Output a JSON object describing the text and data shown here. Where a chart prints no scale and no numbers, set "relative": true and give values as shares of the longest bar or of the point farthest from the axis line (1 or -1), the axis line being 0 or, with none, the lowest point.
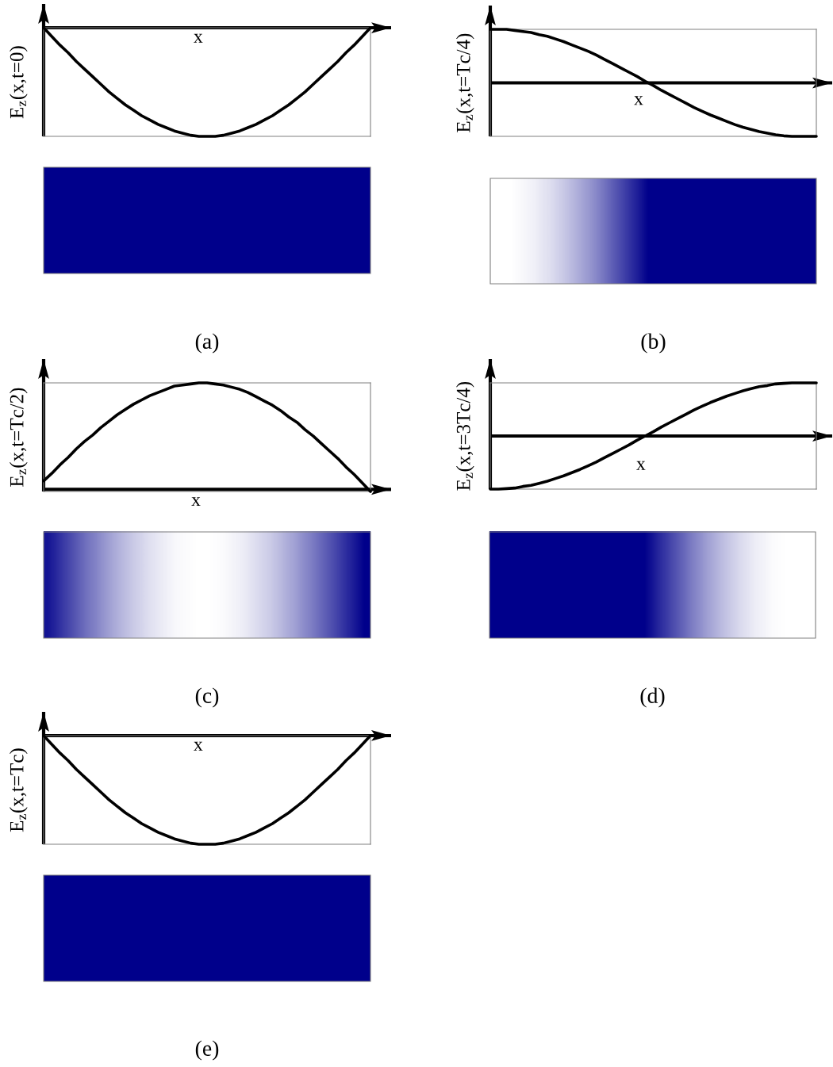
{
  "chart_data": [
    {
      "type": "line",
      "relative": true,
      "xlabel": "x",
      "ylabel": "E$_{z}$(x,t=0)",
      "annotations": [
        "(a)"
      ],
      "categories": [
        null,
        null,
        null,
        null,
        null,
        null,
        null,
        null,
        null,
        null,
        null,
        null,
        null,
        null,
        null,
        null,
        null,
        null,
        null,
        null,
        null,
        null,
        null,
        null,
        null,
        null,
        null,
        null,
        null,
        null,
        null,
        null,
        null,
        null,
        null,
        null,
        null,
        null,
        null,
        null,
        null
      ],
      "series": [
        {
          "color": "#000000",
          "values": [
            0,
            -0.08,
            -0.16,
            -0.23,
            -0.31,
            -0.38,
            -0.45,
            -0.52,
            -0.59,
            -0.65,
            -0.71,
            -0.76,
            -0.81,
            -0.85,
            -0.89,
            -0.92,
            -0.95,
            -0.97,
            -0.99,
            -1,
            -1,
            -1,
            -0.99,
            -0.97,
            -0.95,
            -0.92,
            -0.89,
            -0.85,
            -0.81,
            -0.76,
            -0.71,
            -0.65,
            -0.59,
            -0.52,
            -0.45,
            -0.38,
            -0.31,
            -0.23,
            -0.16,
            -0.08,
            0
          ]
        }
      ]
    },
    {
      "type": "line",
      "relative": true,
      "xlabel": "x",
      "ylabel": "E$_{z}$(x,t=Tc/4)",
      "annotations": [
        "(b)"
      ],
      "categories": [
        null,
        null,
        null,
        null,
        null,
        null,
        null,
        null,
        null,
        null,
        null,
        null,
        null,
        null,
        null,
        null,
        null,
        null,
        null,
        null,
        null,
        null,
        null,
        null,
        null,
        null,
        null,
        null,
        null,
        null,
        null,
        null,
        null,
        null,
        null,
        null,
        null,
        null,
        null,
        null,
        null
      ],
      "series": [
        {
          "color": "#000000",
          "values": [
            1,
            1,
            1,
            0.98,
            0.96,
            0.94,
            0.9,
            0.87,
            0.82,
            0.77,
            0.71,
            0.65,
            0.59,
            0.52,
            0.44,
            0.36,
            0.28,
            0.2,
            0.12,
            0.03,
            -0.05,
            -0.14,
            -0.22,
            -0.3,
            -0.38,
            -0.46,
            -0.53,
            -0.6,
            -0.66,
            -0.72,
            -0.78,
            -0.83,
            -0.87,
            -0.91,
            -0.94,
            -0.97,
            -0.99,
            -1,
            -1,
            -1,
            -1
          ]
        }
      ]
    },
    {
      "type": "line",
      "relative": true,
      "xlabel": "x",
      "ylabel": "E$_{z}$(x,t=Tc/2)",
      "annotations": [
        "(c)"
      ],
      "categories": [
        null,
        null,
        null,
        null,
        null,
        null,
        null,
        null,
        null,
        null,
        null,
        null,
        null,
        null,
        null,
        null,
        null,
        null,
        null,
        null,
        null,
        null,
        null,
        null,
        null,
        null,
        null,
        null,
        null,
        null,
        null,
        null,
        null,
        null,
        null,
        null,
        null,
        null,
        null,
        null,
        null
      ],
      "series": [
        {
          "color": "#000000",
          "values": [
            0.08,
            0.15,
            0.23,
            0.3,
            0.38,
            0.45,
            0.51,
            0.58,
            0.64,
            0.7,
            0.75,
            0.8,
            0.84,
            0.88,
            0.91,
            0.94,
            0.97,
            0.98,
            0.99,
            1,
            1,
            0.99,
            0.98,
            0.96,
            0.94,
            0.91,
            0.87,
            0.83,
            0.79,
            0.74,
            0.68,
            0.63,
            0.56,
            0.5,
            0.43,
            0.36,
            0.29,
            0.21,
            0.14,
            0.06,
            -0.02
          ]
        }
      ]
    },
    {
      "type": "line",
      "relative": true,
      "xlabel": "x",
      "ylabel": "E$_{z}$(x,t=3Tc/4)",
      "annotations": [
        "(d)"
      ],
      "categories": [
        null,
        null,
        null,
        null,
        null,
        null,
        null,
        null,
        null,
        null,
        null,
        null,
        null,
        null,
        null,
        null,
        null,
        null,
        null,
        null,
        null,
        null,
        null,
        null,
        null,
        null,
        null,
        null,
        null,
        null,
        null,
        null,
        null,
        null,
        null,
        null,
        null,
        null,
        null,
        null,
        null
      ],
      "series": [
        {
          "color": "#000000",
          "values": [
            -1,
            -1,
            -0.99,
            -0.98,
            -0.95,
            -0.93,
            -0.89,
            -0.85,
            -0.8,
            -0.75,
            -0.69,
            -0.63,
            -0.56,
            -0.49,
            -0.41,
            -0.33,
            -0.25,
            -0.17,
            -0.08,
            0,
            0.08,
            0.17,
            0.25,
            0.33,
            0.41,
            0.49,
            0.56,
            0.63,
            0.69,
            0.75,
            0.8,
            0.85,
            0.89,
            0.93,
            0.95,
            0.98,
            0.99,
            1,
            1,
            1,
            1
          ]
        }
      ]
    },
    {
      "type": "line",
      "relative": true,
      "xlabel": "x",
      "ylabel": "E$_{z}$(x,t=Tc)",
      "annotations": [
        "(e)"
      ],
      "categories": [
        null,
        null,
        null,
        null,
        null,
        null,
        null,
        null,
        null,
        null,
        null,
        null,
        null,
        null,
        null,
        null,
        null,
        null,
        null,
        null,
        null,
        null,
        null,
        null,
        null,
        null,
        null,
        null,
        null,
        null,
        null,
        null,
        null,
        null,
        null,
        null,
        null,
        null,
        null,
        null,
        null
      ],
      "series": [
        {
          "color": "#000000",
          "values": [
            0,
            -0.08,
            -0.16,
            -0.23,
            -0.31,
            -0.38,
            -0.45,
            -0.52,
            -0.59,
            -0.65,
            -0.71,
            -0.76,
            -0.81,
            -0.85,
            -0.89,
            -0.92,
            -0.95,
            -0.97,
            -0.99,
            -1,
            -1,
            -1,
            -0.99,
            -0.97,
            -0.95,
            -0.92,
            -0.89,
            -0.85,
            -0.81,
            -0.76,
            -0.71,
            -0.65,
            -0.59,
            -0.52,
            -0.45,
            -0.38,
            -0.31,
            -0.23,
            -0.16,
            -0.08,
            0
          ]
        }
      ]
    }
  ]
}
